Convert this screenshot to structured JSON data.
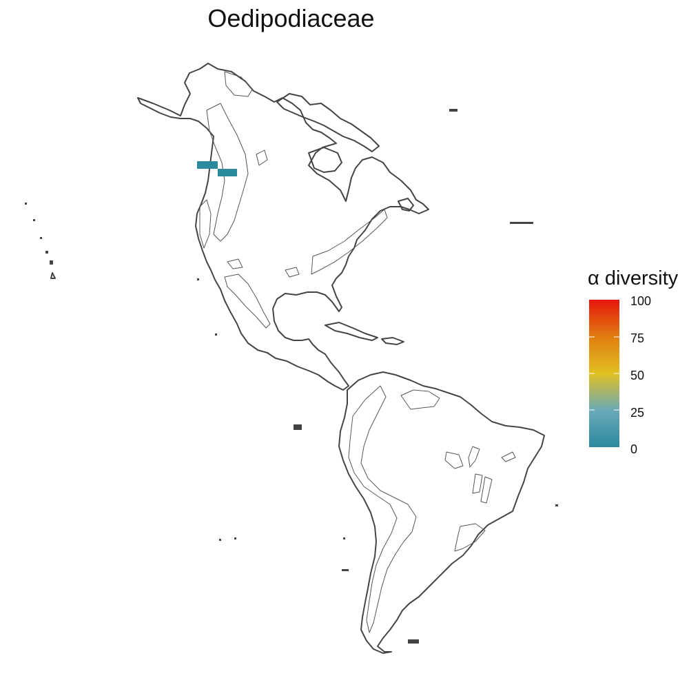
{
  "map": {
    "title": "Oedipodiaceae",
    "occurrence_cells": [
      {
        "lat_band": "north",
        "alpha_diversity": 5
      },
      {
        "lat_band": "south",
        "alpha_diversity": 5
      }
    ]
  },
  "legend": {
    "title": "α diversity",
    "ticks": [
      "100",
      "75",
      "50",
      "25",
      "0"
    ],
    "colors": [
      "#2b8a9e",
      "#6aaab8",
      "#e2c022",
      "#e07d10",
      "#e8160e"
    ]
  }
}
